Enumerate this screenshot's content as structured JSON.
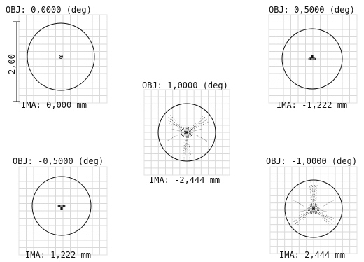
{
  "diagram": {
    "scale_bar": {
      "label": "2,00"
    },
    "panels": [
      {
        "id": "obj-0",
        "obj_label": "OBJ: 0,0000 (deg)",
        "ima_label": "IMA: 0,000 mm",
        "spot": "center-small"
      },
      {
        "id": "obj-05",
        "obj_label": "OBJ: 0,5000 (deg)",
        "ima_label": "IMA: -1,222 mm",
        "spot": "below-small"
      },
      {
        "id": "obj-1",
        "obj_label": "OBJ: 1,0000 (deg)",
        "ima_label": "IMA: -2,444 mm",
        "spot": "spread-down"
      },
      {
        "id": "obj-m05",
        "obj_label": "OBJ: -0,5000 (deg)",
        "ima_label": "IMA: 1,222 mm",
        "spot": "above-small"
      },
      {
        "id": "obj-m1",
        "obj_label": "OBJ: -1,0000 (deg)",
        "ima_label": "IMA: 2,444 mm",
        "spot": "spread-up"
      }
    ]
  }
}
